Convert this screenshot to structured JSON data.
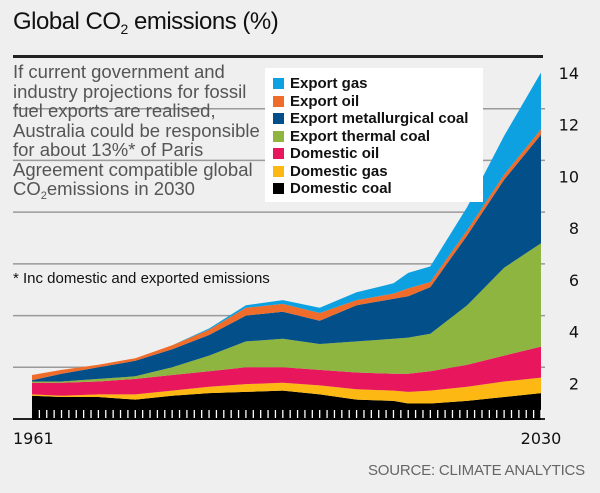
{
  "header": {
    "title_prefix": "Global CO",
    "title_sub": "2",
    "title_suffix": " emissions (%)"
  },
  "intro": {
    "text_main": "If current government and industry projections for fossil fuel exports are realised, Australia could be responsible for about 13%* of Paris Agreement compatible global CO",
    "text_sub": "2",
    "text_end": "emissions in 2030"
  },
  "footnote": "* Inc domestic and exported emissions",
  "source": "SOURCE: CLIMATE ANALYTICS",
  "chart_data": {
    "type": "area",
    "stacked": true,
    "title": "Global CO2 emissions (%)",
    "xlabel": "",
    "ylabel": "",
    "x": [
      1961,
      1965,
      1970,
      1975,
      1980,
      1985,
      1990,
      1995,
      2000,
      2005,
      2010,
      2012,
      2015,
      2020,
      2025,
      2030
    ],
    "x_tick_labels": [
      "1961",
      "2030"
    ],
    "y_ticks": [
      2,
      4,
      6,
      8,
      10,
      12,
      14
    ],
    "ylim": [
      0,
      14
    ],
    "grid": true,
    "legend_position": "top-center",
    "series": [
      {
        "name": "Domestic coal",
        "color": "#000000",
        "values": [
          0.9,
          0.85,
          0.85,
          0.75,
          0.9,
          1.0,
          1.05,
          1.1,
          0.95,
          0.75,
          0.7,
          0.6,
          0.6,
          0.7,
          0.85,
          1.0
        ]
      },
      {
        "name": "Domestic gas",
        "color": "#fdb813",
        "values": [
          0.05,
          0.05,
          0.1,
          0.2,
          0.2,
          0.25,
          0.3,
          0.3,
          0.35,
          0.4,
          0.4,
          0.45,
          0.5,
          0.55,
          0.6,
          0.6
        ]
      },
      {
        "name": "Domestic oil",
        "color": "#e8175d",
        "values": [
          0.45,
          0.5,
          0.5,
          0.6,
          0.6,
          0.6,
          0.65,
          0.6,
          0.6,
          0.65,
          0.65,
          0.7,
          0.75,
          0.85,
          1.0,
          1.2
        ]
      },
      {
        "name": "Export thermal coal",
        "color": "#8db53f",
        "values": [
          0.05,
          0.05,
          0.1,
          0.1,
          0.3,
          0.6,
          1.0,
          1.1,
          1.0,
          1.2,
          1.35,
          1.4,
          1.45,
          2.3,
          3.4,
          4.0
        ]
      },
      {
        "name": "Export metallurgical coal",
        "color": "#034f8a",
        "values": [
          0.05,
          0.3,
          0.45,
          0.6,
          0.7,
          0.8,
          1.0,
          1.05,
          0.9,
          1.4,
          1.55,
          1.6,
          1.8,
          2.7,
          3.4,
          4.2
        ]
      },
      {
        "name": "Export oil",
        "color": "#ef6c2a",
        "values": [
          0.2,
          0.15,
          0.1,
          0.1,
          0.15,
          0.2,
          0.3,
          0.3,
          0.3,
          0.2,
          0.2,
          0.3,
          0.2,
          0.2,
          0.2,
          0.2
        ]
      },
      {
        "name": "Export gas",
        "color": "#0ea1e2",
        "values": [
          0.0,
          0.0,
          0.0,
          0.0,
          0.0,
          0.05,
          0.1,
          0.15,
          0.2,
          0.3,
          0.4,
          0.6,
          0.6,
          0.9,
          1.5,
          2.2
        ]
      }
    ],
    "legend_order": [
      "Export gas",
      "Export oil",
      "Export metallurgical coal",
      "Export thermal coal",
      "Domestic oil",
      "Domestic gas",
      "Domestic coal"
    ]
  }
}
